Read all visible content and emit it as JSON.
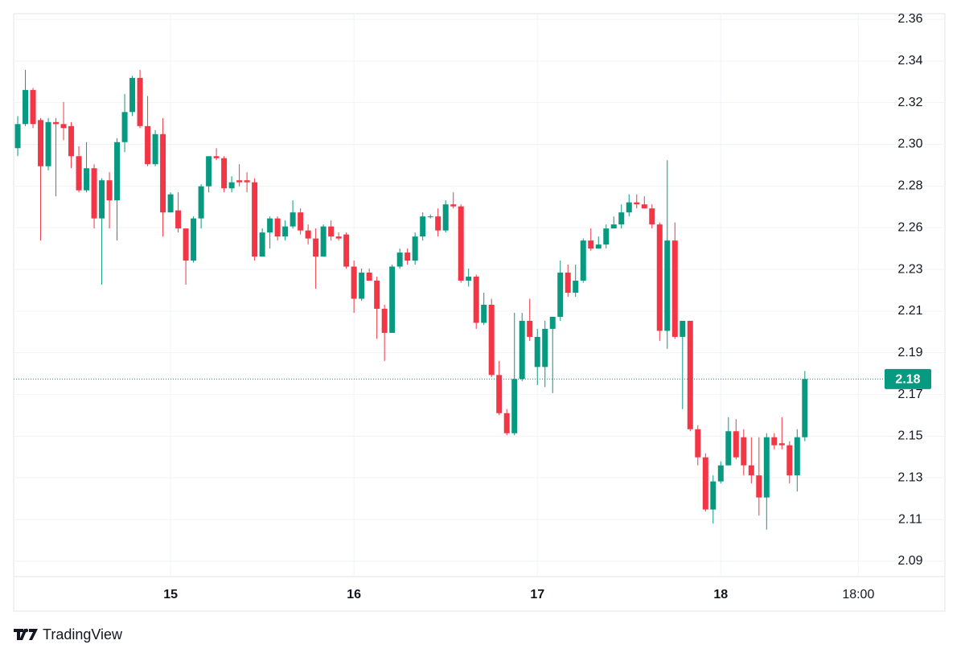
{
  "chart_data": {
    "type": "candlestick",
    "branding": "TradingView",
    "up_color": "#089981",
    "down_color": "#f23645",
    "grid": true,
    "x": [
      0,
      1,
      2,
      3,
      4,
      5,
      6,
      7,
      8,
      9,
      10,
      11,
      12,
      13,
      14,
      15,
      16,
      17,
      18,
      19,
      20,
      21,
      22,
      23,
      24,
      25,
      26,
      27,
      28,
      29,
      30,
      31,
      32,
      33,
      34,
      35,
      36,
      37,
      38,
      39,
      40,
      41,
      42,
      43,
      44,
      45,
      46,
      47,
      48,
      49,
      50,
      51,
      52,
      53,
      54,
      55,
      56,
      57,
      58,
      59,
      60,
      61,
      62,
      63,
      64,
      65,
      66,
      67,
      68,
      69,
      70,
      71,
      72,
      73,
      74,
      75,
      76,
      77,
      78,
      79,
      80,
      81,
      82,
      83,
      84,
      85,
      86,
      87,
      88,
      89,
      90,
      91,
      92,
      93,
      94,
      95,
      96,
      97,
      98,
      99,
      100,
      101,
      102,
      103
    ],
    "open": [
      2.295,
      2.307,
      2.324,
      2.309,
      2.286,
      2.308,
      2.307,
      2.306,
      2.291,
      2.274,
      2.285,
      2.26,
      2.279,
      2.269,
      2.298,
      2.313,
      2.33,
      2.306,
      2.287,
      2.302,
      2.263,
      2.264,
      2.255,
      2.239,
      2.26,
      2.276,
      2.291,
      2.29,
      2.275,
      2.279,
      2.279,
      2.278,
      2.241,
      2.253,
      2.26,
      2.251,
      2.256,
      2.263,
      2.254,
      2.25,
      2.241,
      2.256,
      2.251,
      2.252,
      2.236,
      2.22,
      2.233,
      2.229,
      2.215,
      2.203,
      2.236,
      2.243,
      2.239,
      2.251,
      2.261,
      2.261,
      2.254,
      2.267,
      2.266,
      2.229,
      2.231,
      2.208,
      2.217,
      2.182,
      2.163,
      2.153,
      2.18,
      2.209,
      2.186,
      2.186,
      2.205,
      2.211,
      2.233,
      2.223,
      2.229,
      2.249,
      2.245,
      2.247,
      2.255,
      2.257,
      2.263,
      2.268,
      2.267,
      2.265,
      2.257,
      2.204,
      2.249,
      2.201,
      2.209,
      2.155,
      2.141,
      2.115,
      2.129,
      2.137,
      2.154,
      2.151,
      2.137,
      2.132,
      2.121,
      2.151,
      2.148,
      2.147,
      2.132,
      2.151
    ],
    "high": [
      2.311,
      2.334,
      2.325,
      2.31,
      2.31,
      2.31,
      2.318,
      2.308,
      2.296,
      2.298,
      2.287,
      2.28,
      2.283,
      2.3,
      2.322,
      2.331,
      2.334,
      2.321,
      2.304,
      2.31,
      2.273,
      2.273,
      2.255,
      2.261,
      2.277,
      2.291,
      2.295,
      2.291,
      2.281,
      2.287,
      2.283,
      2.28,
      2.255,
      2.261,
      2.261,
      2.259,
      2.269,
      2.265,
      2.257,
      2.255,
      2.257,
      2.259,
      2.253,
      2.253,
      2.239,
      2.235,
      2.235,
      2.231,
      2.217,
      2.237,
      2.245,
      2.245,
      2.253,
      2.263,
      2.262,
      2.265,
      2.269,
      2.273,
      2.267,
      2.235,
      2.232,
      2.223,
      2.22,
      2.189,
      2.165,
      2.213,
      2.213,
      2.22,
      2.205,
      2.209,
      2.211,
      2.239,
      2.237,
      2.237,
      2.25,
      2.255,
      2.251,
      2.257,
      2.261,
      2.267,
      2.272,
      2.272,
      2.271,
      2.267,
      2.258,
      2.289,
      2.258,
      2.209,
      2.209,
      2.157,
      2.143,
      2.132,
      2.139,
      2.161,
      2.16,
      2.155,
      2.151,
      2.151,
      2.153,
      2.153,
      2.161,
      2.149,
      2.155,
      2.184
    ],
    "low": [
      2.291,
      2.306,
      2.305,
      2.249,
      2.284,
      2.271,
      2.299,
      2.285,
      2.273,
      2.273,
      2.255,
      2.227,
      2.255,
      2.249,
      2.293,
      2.311,
      2.305,
      2.286,
      2.286,
      2.251,
      2.263,
      2.253,
      2.227,
      2.238,
      2.255,
      2.273,
      2.289,
      2.273,
      2.273,
      2.276,
      2.273,
      2.239,
      2.241,
      2.245,
      2.249,
      2.249,
      2.255,
      2.252,
      2.247,
      2.225,
      2.241,
      2.249,
      2.249,
      2.235,
      2.213,
      2.219,
      2.229,
      2.2,
      2.189,
      2.203,
      2.235,
      2.237,
      2.237,
      2.249,
      2.26,
      2.251,
      2.253,
      2.265,
      2.228,
      2.226,
      2.205,
      2.207,
      2.181,
      2.162,
      2.152,
      2.152,
      2.179,
      2.199,
      2.177,
      2.176,
      2.173,
      2.209,
      2.221,
      2.221,
      2.228,
      2.244,
      2.245,
      2.245,
      2.255,
      2.255,
      2.261,
      2.265,
      2.265,
      2.255,
      2.199,
      2.195,
      2.2,
      2.165,
      2.154,
      2.137,
      2.114,
      2.108,
      2.128,
      2.137,
      2.14,
      2.132,
      2.128,
      2.112,
      2.105,
      2.145,
      2.145,
      2.128,
      2.124,
      2.149
    ],
    "close": [
      2.307,
      2.324,
      2.307,
      2.286,
      2.308,
      2.307,
      2.305,
      2.291,
      2.274,
      2.285,
      2.26,
      2.279,
      2.269,
      2.298,
      2.313,
      2.33,
      2.306,
      2.287,
      2.302,
      2.263,
      2.272,
      2.255,
      2.239,
      2.26,
      2.276,
      2.291,
      2.29,
      2.275,
      2.278,
      2.278,
      2.278,
      2.241,
      2.253,
      2.26,
      2.251,
      2.256,
      2.263,
      2.254,
      2.25,
      2.241,
      2.256,
      2.251,
      2.25,
      2.236,
      2.22,
      2.233,
      2.229,
      2.215,
      2.203,
      2.236,
      2.243,
      2.239,
      2.251,
      2.261,
      2.261,
      2.254,
      2.267,
      2.266,
      2.229,
      2.231,
      2.208,
      2.217,
      2.182,
      2.163,
      2.153,
      2.18,
      2.209,
      2.201,
      2.201,
      2.205,
      2.211,
      2.233,
      2.223,
      2.229,
      2.249,
      2.245,
      2.247,
      2.255,
      2.257,
      2.263,
      2.268,
      2.267,
      2.265,
      2.257,
      2.204,
      2.249,
      2.201,
      2.209,
      2.155,
      2.141,
      2.115,
      2.129,
      2.137,
      2.154,
      2.141,
      2.137,
      2.132,
      2.121,
      2.151,
      2.147,
      2.147,
      2.132,
      2.151,
      2.18
    ],
    "last_label": "2.18",
    "xlim": [
      -0.53,
      112.7
    ],
    "xticks": [
      {
        "value": 20,
        "label": "15"
      },
      {
        "value": 44,
        "label": "16"
      },
      {
        "value": 68,
        "label": "17"
      },
      {
        "value": 92,
        "label": "18"
      },
      {
        "value": 110,
        "label": "18:00"
      }
    ],
    "ylim": [
      2.0816,
      2.362
    ],
    "yticks": [
      {
        "value": 2.3592,
        "label": "2.36"
      },
      {
        "value": 2.3384,
        "label": "2.34"
      },
      {
        "value": 2.3177,
        "label": "2.32"
      },
      {
        "value": 2.2969,
        "label": "2.30"
      },
      {
        "value": 2.2761,
        "label": "2.28"
      },
      {
        "value": 2.2554,
        "label": "2.26"
      },
      {
        "value": 2.2346,
        "label": "2.23"
      },
      {
        "value": 2.2138,
        "label": "2.21"
      },
      {
        "value": 2.1931,
        "label": "2.19"
      },
      {
        "value": 2.1723,
        "label": "2.17"
      },
      {
        "value": 2.1515,
        "label": "2.15"
      },
      {
        "value": 2.1308,
        "label": "2.13"
      },
      {
        "value": 2.11,
        "label": "2.11"
      },
      {
        "value": 2.0892,
        "label": "2.09"
      }
    ]
  }
}
